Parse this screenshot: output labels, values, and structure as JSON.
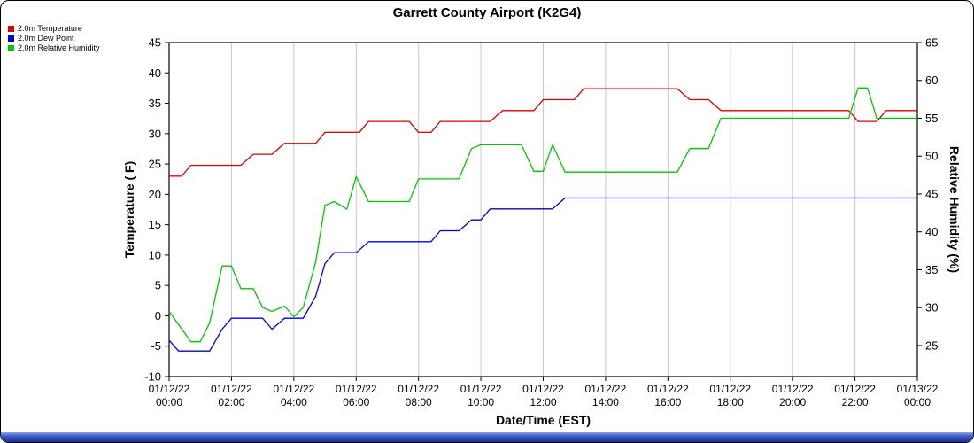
{
  "window": {
    "title": "Garrett County Airport (K2G4)"
  },
  "legend": [
    {
      "label": "2.0m Temperature",
      "color": "#dd0000"
    },
    {
      "label": "2.0m Dew Point",
      "color": "#0000dd"
    },
    {
      "label": "2.0m Relative Humidity",
      "color": "#00c800"
    }
  ],
  "chart_data": {
    "type": "line",
    "title": "Garrett County Airport (K2G4)",
    "xlabel": "Date/Time (EST)",
    "ylabel_left": "Temperature ( F)",
    "ylabel_right": "Relative Humidity (%)",
    "grid": {
      "vertical": true,
      "horizontal": false,
      "color": "#c8c8c8"
    },
    "x_axis": {
      "min_hour": 0,
      "max_hour": 24,
      "tick_interval_hours": 2,
      "tick_labels": [
        [
          "01/12/22",
          "00:00"
        ],
        [
          "01/12/22",
          "02:00"
        ],
        [
          "01/12/22",
          "04:00"
        ],
        [
          "01/12/22",
          "06:00"
        ],
        [
          "01/12/22",
          "08:00"
        ],
        [
          "01/12/22",
          "10:00"
        ],
        [
          "01/12/22",
          "12:00"
        ],
        [
          "01/12/22",
          "14:00"
        ],
        [
          "01/12/22",
          "16:00"
        ],
        [
          "01/12/22",
          "18:00"
        ],
        [
          "01/12/22",
          "20:00"
        ],
        [
          "01/12/22",
          "22:00"
        ],
        [
          "01/13/22",
          "00:00"
        ]
      ]
    },
    "left_axis": {
      "min": -10,
      "max": 45,
      "ticks": [
        -10,
        -5,
        0,
        5,
        10,
        15,
        20,
        25,
        30,
        35,
        40,
        45
      ]
    },
    "right_axis": {
      "min": 20.9,
      "max": 65,
      "ticks": [
        25,
        30,
        35,
        40,
        45,
        50,
        55,
        60,
        65
      ]
    },
    "series": [
      {
        "id": "temperature",
        "name": "2.0m Temperature",
        "axis": "left",
        "color": "#dd0000",
        "points": [
          [
            0,
            23
          ],
          [
            0.4,
            23
          ],
          [
            0.7,
            24.8
          ],
          [
            2.3,
            24.8
          ],
          [
            2.7,
            26.6
          ],
          [
            3.3,
            26.6
          ],
          [
            3.7,
            28.4
          ],
          [
            4.7,
            28.4
          ],
          [
            5,
            30.2
          ],
          [
            6.1,
            30.2
          ],
          [
            6.4,
            32
          ],
          [
            7.7,
            32
          ],
          [
            8,
            30.2
          ],
          [
            8.4,
            30.2
          ],
          [
            8.7,
            32
          ],
          [
            10.3,
            32
          ],
          [
            10.7,
            33.8
          ],
          [
            11.7,
            33.8
          ],
          [
            12,
            35.6
          ],
          [
            13,
            35.6
          ],
          [
            13.3,
            37.4
          ],
          [
            16.3,
            37.4
          ],
          [
            16.7,
            35.6
          ],
          [
            17.3,
            35.6
          ],
          [
            17.7,
            33.8
          ],
          [
            21.8,
            33.8
          ],
          [
            22.1,
            32
          ],
          [
            22.7,
            32
          ],
          [
            23,
            33.8
          ],
          [
            24,
            33.8
          ]
        ]
      },
      {
        "id": "dew-point",
        "name": "2.0m Dew Point",
        "axis": "left",
        "color": "#0000dd",
        "points": [
          [
            0,
            -4
          ],
          [
            0.3,
            -5.8
          ],
          [
            1.3,
            -5.8
          ],
          [
            1.7,
            -2.2
          ],
          [
            2,
            -0.4
          ],
          [
            3,
            -0.4
          ],
          [
            3.3,
            -2.2
          ],
          [
            3.7,
            -0.4
          ],
          [
            4.3,
            -0.4
          ],
          [
            4.7,
            3.2
          ],
          [
            5,
            8.6
          ],
          [
            5.3,
            10.4
          ],
          [
            6,
            10.4
          ],
          [
            6.4,
            12.2
          ],
          [
            8.4,
            12.2
          ],
          [
            8.7,
            14
          ],
          [
            9.3,
            14
          ],
          [
            9.7,
            15.8
          ],
          [
            10,
            15.8
          ],
          [
            10.3,
            17.6
          ],
          [
            12.3,
            17.6
          ],
          [
            12.7,
            19.4
          ],
          [
            24,
            19.4
          ]
        ]
      },
      {
        "id": "relative-humidity",
        "name": "2.0m Relative Humidity",
        "axis": "right",
        "color": "#00c800",
        "points": [
          [
            0,
            29.5
          ],
          [
            0.7,
            25.5
          ],
          [
            1,
            25.5
          ],
          [
            1.3,
            28
          ],
          [
            1.7,
            35.5
          ],
          [
            2,
            35.5
          ],
          [
            2.3,
            32.5
          ],
          [
            2.7,
            32.5
          ],
          [
            3,
            30
          ],
          [
            3.3,
            29.5
          ],
          [
            3.7,
            30.2
          ],
          [
            4,
            28.8
          ],
          [
            4.3,
            30
          ],
          [
            4.7,
            36
          ],
          [
            5,
            43.5
          ],
          [
            5.3,
            44
          ],
          [
            5.7,
            43
          ],
          [
            6,
            47.3
          ],
          [
            6.4,
            44
          ],
          [
            7.7,
            44
          ],
          [
            8,
            47
          ],
          [
            9.3,
            47
          ],
          [
            9.7,
            51
          ],
          [
            10,
            51.5
          ],
          [
            11.3,
            51.5
          ],
          [
            11.7,
            48
          ],
          [
            12,
            48
          ],
          [
            12.3,
            51.5
          ],
          [
            12.7,
            47.9
          ],
          [
            16.3,
            47.9
          ],
          [
            16.7,
            51
          ],
          [
            17.3,
            51
          ],
          [
            17.7,
            55
          ],
          [
            21.8,
            55
          ],
          [
            22.1,
            59
          ],
          [
            22.4,
            59
          ],
          [
            22.7,
            55
          ],
          [
            24,
            55
          ]
        ]
      }
    ]
  }
}
